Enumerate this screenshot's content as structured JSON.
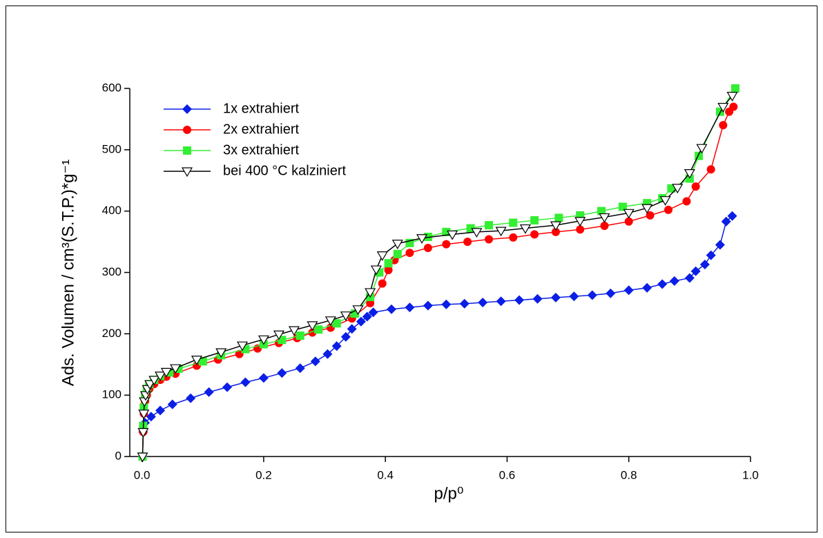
{
  "chart_data": {
    "type": "line",
    "x_label": "p/p⁰",
    "y_label": "Ads. Volumen / cm³(S.T.P.)*g⁻¹",
    "xlim": [
      -0.02,
      1.0
    ],
    "ylim": [
      0,
      600
    ],
    "xticks": [
      {
        "value": 0,
        "label": "0.0"
      },
      0.2,
      0.4,
      0.6,
      0.8,
      {
        "value": 1,
        "label": "1.0"
      }
    ],
    "yticks": [
      0,
      100,
      200,
      300,
      400,
      500,
      600
    ],
    "legend": "upper left",
    "series": [
      {
        "name": "1x extrahiert",
        "color": "#0a1ee6",
        "marker": "diamond",
        "x": [
          0.001,
          0.002,
          0.005,
          0.015,
          0.03,
          0.05,
          0.08,
          0.11,
          0.14,
          0.17,
          0.2,
          0.23,
          0.26,
          0.285,
          0.305,
          0.32,
          0.335,
          0.345,
          0.36,
          0.37,
          0.38,
          0.41,
          0.44,
          0.47,
          0.5,
          0.53,
          0.56,
          0.59,
          0.62,
          0.65,
          0.68,
          0.71,
          0.74,
          0.77,
          0.8,
          0.83,
          0.855,
          0.875,
          0.9,
          0.91,
          0.925,
          0.935,
          0.95,
          0.96,
          0.97
        ],
        "values": [
          0,
          40,
          55,
          65,
          75,
          85,
          95,
          105,
          113,
          121,
          128,
          136,
          144,
          155,
          167,
          180,
          195,
          208,
          220,
          228,
          235,
          240,
          243,
          246,
          248,
          249,
          251,
          253,
          255,
          257,
          259,
          261,
          263,
          266,
          271,
          275,
          281,
          286,
          291,
          302,
          313,
          328,
          345,
          383,
          392
        ]
      },
      {
        "name": "2x extrahiert",
        "color": "#ff0000",
        "marker": "circle",
        "x": [
          0.001,
          0.002,
          0.003,
          0.005,
          0.008,
          0.012,
          0.02,
          0.03,
          0.04,
          0.055,
          0.09,
          0.125,
          0.16,
          0.19,
          0.225,
          0.255,
          0.28,
          0.31,
          0.345,
          0.375,
          0.395,
          0.405,
          0.415,
          0.44,
          0.47,
          0.5,
          0.535,
          0.57,
          0.61,
          0.645,
          0.68,
          0.72,
          0.76,
          0.8,
          0.835,
          0.865,
          0.895,
          0.91,
          0.935,
          0.955,
          0.965,
          0.972
        ],
        "values": [
          0,
          40,
          70,
          90,
          100,
          110,
          118,
          125,
          130,
          135,
          148,
          158,
          167,
          176,
          185,
          193,
          202,
          210,
          225,
          250,
          282,
          304,
          320,
          332,
          340,
          346,
          350,
          354,
          357,
          362,
          366,
          370,
          376,
          383,
          393,
          402,
          416,
          440,
          468,
          540,
          562,
          570
        ]
      },
      {
        "name": "3x extrahiert",
        "color": "#33ee33",
        "marker": "square",
        "x": [
          0.001,
          0.002,
          0.003,
          0.005,
          0.008,
          0.012,
          0.02,
          0.03,
          0.045,
          0.06,
          0.1,
          0.13,
          0.17,
          0.2,
          0.23,
          0.26,
          0.29,
          0.32,
          0.35,
          0.375,
          0.39,
          0.405,
          0.42,
          0.44,
          0.47,
          0.5,
          0.54,
          0.57,
          0.61,
          0.645,
          0.685,
          0.72,
          0.755,
          0.79,
          0.83,
          0.855,
          0.87,
          0.9,
          0.915,
          0.95,
          0.975
        ],
        "values": [
          0,
          50,
          80,
          100,
          110,
          118,
          125,
          131,
          137,
          143,
          155,
          165,
          175,
          183,
          190,
          197,
          207,
          217,
          233,
          260,
          300,
          315,
          330,
          348,
          358,
          366,
          372,
          377,
          381,
          385,
          389,
          393,
          400,
          407,
          413,
          421,
          437,
          453,
          490,
          562,
          600
        ]
      },
      {
        "name": "bei 400 °C kalziniert",
        "color": "#000000",
        "marker": "triangle-down",
        "x": [
          0.001,
          0.002,
          0.003,
          0.004,
          0.006,
          0.009,
          0.013,
          0.02,
          0.03,
          0.04,
          0.055,
          0.09,
          0.13,
          0.165,
          0.2,
          0.225,
          0.25,
          0.28,
          0.31,
          0.335,
          0.355,
          0.375,
          0.385,
          0.395,
          0.42,
          0.46,
          0.51,
          0.55,
          0.59,
          0.63,
          0.68,
          0.72,
          0.76,
          0.8,
          0.83,
          0.86,
          0.88,
          0.9,
          0.92,
          0.955,
          0.97
        ],
        "values": [
          0,
          40,
          70,
          90,
          100,
          110,
          118,
          125,
          132,
          138,
          144,
          158,
          170,
          181,
          191,
          199,
          206,
          214,
          222,
          230,
          240,
          268,
          305,
          328,
          347,
          356,
          362,
          366,
          368,
          372,
          377,
          384,
          390,
          397,
          405,
          418,
          438,
          462,
          503,
          570,
          588
        ]
      }
    ]
  }
}
